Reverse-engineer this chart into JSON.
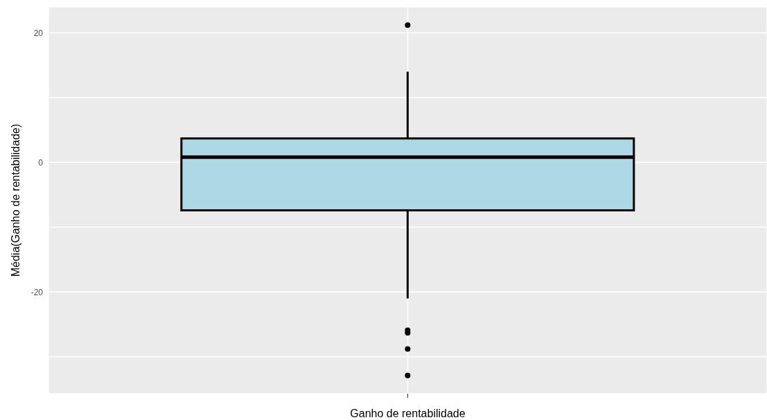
{
  "chart_data": {
    "type": "box",
    "xlabel": "Ganho de rentabilidade",
    "ylabel": "Média(Ganho de rentabilidade)",
    "categories": [
      null
    ],
    "color": "#add8e6",
    "boxes": [
      {
        "low": -21,
        "q1": -7.4,
        "median": 0.8,
        "q3": 3.7,
        "high": 14,
        "outliers": [
          21.2,
          -25.9,
          -26.3,
          -28.8,
          -32.9
        ]
      }
    ],
    "ylim": [
      -35.7,
      24
    ],
    "yticks": [
      {
        "value": -30,
        "label": null
      },
      -20,
      {
        "value": -10,
        "label": null
      },
      0,
      {
        "value": 10,
        "label": null
      },
      20
    ],
    "grid": true
  }
}
